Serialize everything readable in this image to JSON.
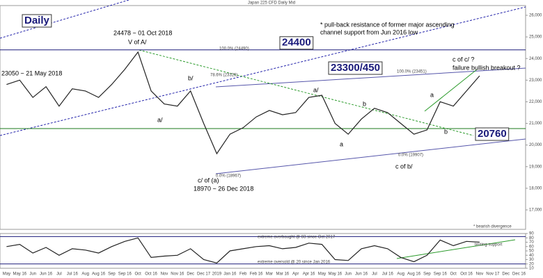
{
  "chart_data": [
    {
      "type": "line",
      "title": "Japan 225 CFD Daily Mid",
      "categories": [
        "May",
        "May 16",
        "Jun",
        "Jun 16",
        "Jul",
        "Jul 16",
        "Aug",
        "Aug 16",
        "Sep",
        "Sep 16",
        "Oct",
        "Oct 16",
        "Nov",
        "Nov 16",
        "Dec",
        "Dec 17",
        "2019",
        "Jan 16",
        "Feb",
        "Feb 16",
        "Mar",
        "Mar 16",
        "Apr",
        "Apr 16",
        "May",
        "May 16",
        "Jun",
        "Jun 16",
        "Jul",
        "Jul 16",
        "Aug",
        "Aug 16",
        "Sep",
        "Sep 16",
        "Oct",
        "Oct 16",
        "Nov",
        "Nov 17",
        "Dec",
        "Dec 16"
      ],
      "series": [
        {
          "name": "Japan 225",
          "color": "#222222",
          "values": [
            22800,
            23000,
            22200,
            22700,
            21800,
            22600,
            22500,
            22200,
            22800,
            23500,
            24300,
            22500,
            21900,
            21800,
            22500,
            21000,
            19600,
            20500,
            20800,
            21300,
            21600,
            21400,
            21500,
            22200,
            22300,
            21000,
            20500,
            21200,
            21700,
            21500,
            21000,
            20500,
            20700,
            22000,
            21800,
            22500,
            23200,
            null,
            null,
            null
          ]
        }
      ],
      "ylim": [
        16100,
        26450
      ],
      "yticks": [
        {
          "value": 17000,
          "label": "17,000"
        },
        {
          "value": 18000,
          "label": "18,000"
        },
        {
          "value": 19000,
          "label": "19,000"
        },
        {
          "value": 20000,
          "label": "20,000"
        },
        {
          "value": 21000,
          "label": "21,000"
        },
        {
          "value": 22000,
          "label": "22,000"
        },
        {
          "value": 23000,
          "label": "23,000"
        },
        {
          "value": 24000,
          "label": "24,000"
        },
        {
          "value": 25000,
          "label": "25,000"
        },
        {
          "value": 26000,
          "label": "26,000"
        }
      ],
      "levels": [
        24400,
        20760
      ],
      "level_colors": [
        "#1a1a7a",
        "#1a7a1a"
      ],
      "annotations": [
        "Daily",
        "24478 ~ 01 Oct 2018",
        "V of A/",
        "23050 ~ 21 May 2018",
        "b/",
        "a/",
        "c/ of (a)",
        "18970 ~ 26 Dec 2018",
        "a/",
        "b",
        "a",
        "c of b/",
        "a",
        "b",
        "c of c/ ?",
        "failure bullish breakout ?",
        "* pull-back resistance of former major ascending",
        "channel support from Jun 2016 low",
        "23300/450",
        "100.0% (24490)",
        "78.6% (23326)",
        "100.0% (23451)",
        "0.0% (18967)",
        "0.0% (19907)"
      ]
    },
    {
      "type": "line",
      "series": [
        {
          "name": "RSI",
          "color": "#222222",
          "values": [
            60,
            65,
            45,
            58,
            40,
            55,
            52,
            45,
            60,
            72,
            80,
            35,
            38,
            40,
            55,
            30,
            22,
            50,
            55,
            60,
            62,
            55,
            58,
            68,
            65,
            30,
            28,
            55,
            62,
            55,
            35,
            25,
            40,
            75,
            62,
            72,
            70,
            null,
            null,
            null
          ]
        }
      ],
      "ylim": [
        10,
        90
      ],
      "yticks": [
        10,
        20,
        30,
        40,
        50,
        60,
        70,
        80,
        90
      ],
      "levels": [
        83,
        20
      ],
      "annotations": [
        "extreme overbought @ 83 since Oct 2017",
        "* bearish divergence",
        "testing support",
        "extreme oversold @ 20 since Jan 2016"
      ]
    }
  ]
}
